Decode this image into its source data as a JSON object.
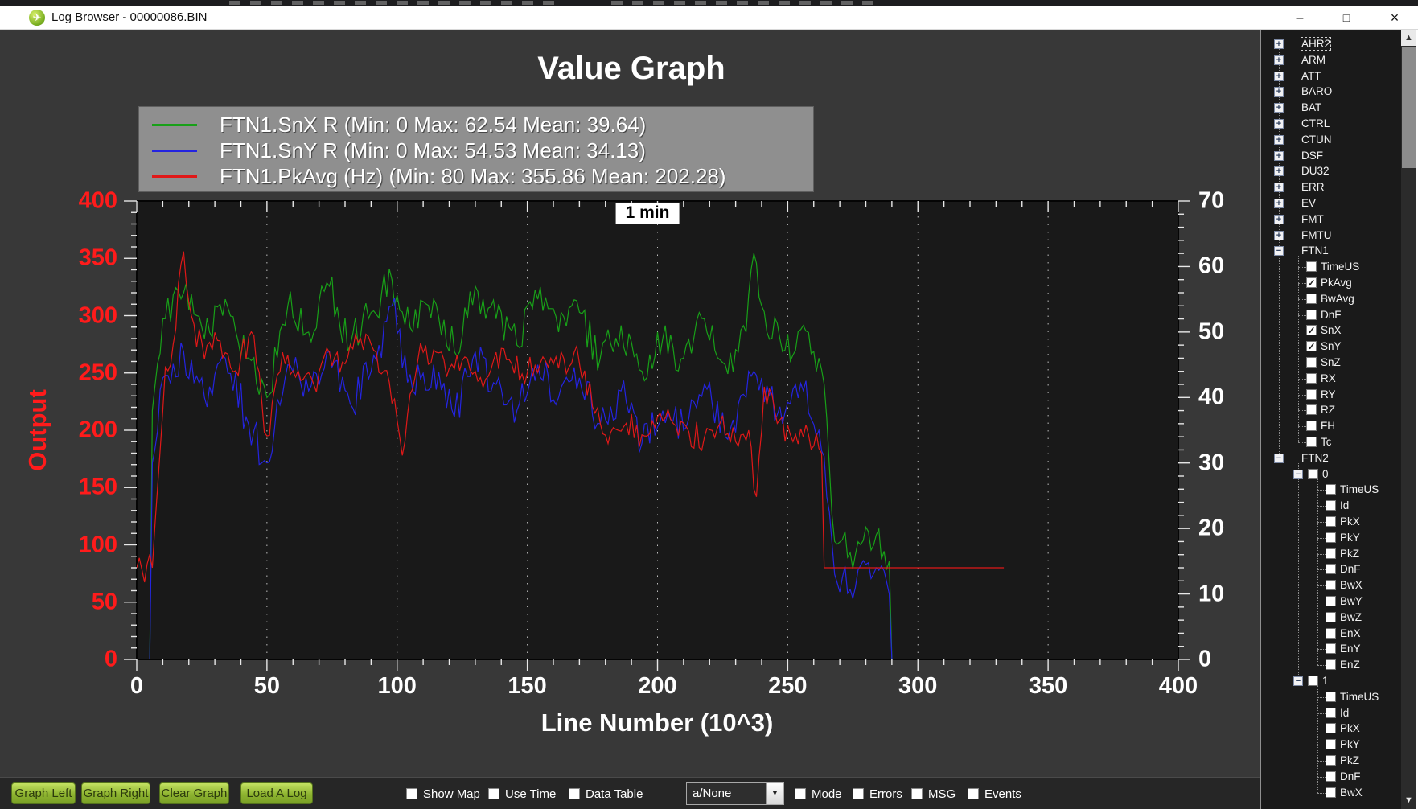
{
  "window": {
    "title": "Log Browser - 00000086.BIN",
    "controls": [
      "minimize",
      "maximize",
      "close"
    ],
    "icon": "plane-logo-icon"
  },
  "chart_data": {
    "type": "line",
    "title": "Value Graph",
    "xlabel": "Line Number (10^3)",
    "ylabel_left": "Output",
    "annotation": "1 min",
    "grid": {
      "vertical_dotted": true,
      "horizontal": false
    },
    "x_axis": {
      "min": 0,
      "max": 400,
      "major_step": 50,
      "minor_step": 10
    },
    "y_left": {
      "min": 0,
      "max": 400,
      "major_step": 50,
      "minor_step": 10,
      "color": "#ff1b1b"
    },
    "y_right": {
      "min": 0,
      "max": 70,
      "major_step": 10,
      "minor_step": 2,
      "color": "#ffffff"
    },
    "legend": {
      "position": "top-left",
      "entries": [
        {
          "label": "FTN1.SnX R (Min: 0 Max: 62.54 Mean: 39.64)",
          "color": "#18a018"
        },
        {
          "label": "FTN1.SnY R (Min: 0 Max: 54.53 Mean: 34.13)",
          "color": "#2424e0"
        },
        {
          "label": "FTN1.PkAvg (Hz) (Min: 80 Max: 355.86 Mean: 202.28)",
          "color": "#e01818"
        }
      ]
    },
    "series": [
      {
        "name": "FTN1.SnX R",
        "axis": "right",
        "color": "#18a018",
        "stats": {
          "min": 0,
          "max": 62.54,
          "mean": 39.64
        },
        "segments": [
          {
            "jitter": 3,
            "x": [
              5,
              6,
              10,
              18,
              26,
              34,
              42,
              50,
              58,
              66,
              74,
              82,
              90,
              98,
              106,
              114,
              122,
              130,
              138,
              146,
              154,
              162,
              170,
              178,
              186,
              194,
              202,
              210,
              218,
              226,
              234,
              237,
              240,
              248,
              256,
              262,
              264,
              268,
              276,
              284,
              289,
              290
            ],
            "y": [
              0,
              38,
              52,
              56,
              49,
              55,
              46,
              40,
              54,
              50,
              57,
              48,
              53,
              58,
              50,
              55,
              47,
              57,
              52,
              48,
              55,
              50,
              53,
              46,
              51,
              44,
              49,
              46,
              52,
              45,
              50,
              62,
              54,
              47,
              51,
              46,
              42,
              18,
              16,
              19,
              15,
              0
            ]
          }
        ]
      },
      {
        "name": "FTN1.SnY R",
        "axis": "right",
        "color": "#2424e0",
        "stats": {
          "min": 0,
          "max": 54.53,
          "mean": 34.13
        },
        "segments": [
          {
            "jitter": 3,
            "x": [
              5,
              6,
              10,
              18,
              26,
              34,
              42,
              50,
              58,
              66,
              74,
              82,
              90,
              98,
              106,
              114,
              122,
              130,
              138,
              146,
              154,
              162,
              170,
              178,
              186,
              194,
              202,
              210,
              218,
              226,
              234,
              237,
              240,
              248,
              256,
              262,
              264,
              268,
              276,
              284,
              289,
              290
            ],
            "y": [
              0,
              30,
              43,
              47,
              40,
              46,
              37,
              30,
              45,
              41,
              47,
              39,
              44,
              54,
              41,
              45,
              37,
              47,
              42,
              38,
              45,
              40,
              43,
              36,
              41,
              33,
              38,
              35,
              42,
              34,
              40,
              44,
              43,
              36,
              41,
              35,
              31,
              13,
              11,
              14,
              10,
              0
            ]
          },
          {
            "jitter": 0,
            "x": [
              290,
              331
            ],
            "y": [
              0,
              0
            ]
          }
        ]
      },
      {
        "name": "FTN1.PkAvg (Hz)",
        "axis": "left",
        "color": "#e01818",
        "stats": {
          "min": 80,
          "max": 355.86,
          "mean": 202.28
        },
        "segments": [
          {
            "jitter": 13,
            "x": [
              0,
              6,
              8,
              11,
              14,
              18,
              21,
              26,
              32,
              38,
              44,
              50,
              56,
              62,
              68,
              74,
              80,
              86,
              92,
              97,
              102,
              108,
              114,
              120,
              126,
              132,
              138,
              144,
              150,
              156,
              162,
              168,
              172,
              176,
              182,
              188,
              194,
              200,
              206,
              212,
              218,
              224,
              230,
              235,
              238,
              241,
              246,
              252,
              258,
              262,
              263
            ],
            "y": [
              80,
              80,
              150,
              255,
              275,
              356,
              300,
              262,
              278,
              252,
              286,
              195,
              268,
              252,
              240,
              268,
              258,
              280,
              268,
              242,
              178,
              262,
              270,
              254,
              264,
              246,
              268,
              258,
              250,
              264,
              254,
              268,
              252,
              215,
              198,
              206,
              196,
              212,
              206,
              199,
              194,
              206,
              190,
              200,
              142,
              238,
              206,
              190,
              196,
              184,
              180
            ]
          },
          {
            "jitter": 0,
            "x": [
              263,
              264,
              333
            ],
            "y": [
              180,
              80,
              80
            ]
          }
        ]
      }
    ]
  },
  "tree": {
    "nodes": [
      {
        "label": "AHR2",
        "state": "collapsed",
        "selected": true
      },
      {
        "label": "ARM",
        "state": "collapsed"
      },
      {
        "label": "ATT",
        "state": "collapsed"
      },
      {
        "label": "BARO",
        "state": "collapsed"
      },
      {
        "label": "BAT",
        "state": "collapsed"
      },
      {
        "label": "CTRL",
        "state": "collapsed"
      },
      {
        "label": "CTUN",
        "state": "collapsed"
      },
      {
        "label": "DSF",
        "state": "collapsed"
      },
      {
        "label": "DU32",
        "state": "collapsed"
      },
      {
        "label": "ERR",
        "state": "collapsed"
      },
      {
        "label": "EV",
        "state": "collapsed"
      },
      {
        "label": "FMT",
        "state": "collapsed"
      },
      {
        "label": "FMTU",
        "state": "collapsed"
      },
      {
        "label": "FTN1",
        "state": "expanded",
        "children": [
          {
            "label": "TimeUS",
            "checked": false
          },
          {
            "label": "PkAvg",
            "checked": true
          },
          {
            "label": "BwAvg",
            "checked": false
          },
          {
            "label": "DnF",
            "checked": false
          },
          {
            "label": "SnX",
            "checked": true
          },
          {
            "label": "SnY",
            "checked": true
          },
          {
            "label": "SnZ",
            "checked": false
          },
          {
            "label": "RX",
            "checked": false
          },
          {
            "label": "RY",
            "checked": false
          },
          {
            "label": "RZ",
            "checked": false
          },
          {
            "label": "FH",
            "checked": false
          },
          {
            "label": "Tc",
            "checked": false
          }
        ]
      },
      {
        "label": "FTN2",
        "state": "expanded",
        "children": [
          {
            "label": "0",
            "state": "expanded",
            "checked": false,
            "children": [
              {
                "label": "TimeUS",
                "checked": false
              },
              {
                "label": "Id",
                "checked": false
              },
              {
                "label": "PkX",
                "checked": false
              },
              {
                "label": "PkY",
                "checked": false
              },
              {
                "label": "PkZ",
                "checked": false
              },
              {
                "label": "DnF",
                "checked": false
              },
              {
                "label": "BwX",
                "checked": false
              },
              {
                "label": "BwY",
                "checked": false
              },
              {
                "label": "BwZ",
                "checked": false
              },
              {
                "label": "EnX",
                "checked": false
              },
              {
                "label": "EnY",
                "checked": false
              },
              {
                "label": "EnZ",
                "checked": false
              }
            ]
          },
          {
            "label": "1",
            "state": "expanded",
            "checked": false,
            "children": [
              {
                "label": "TimeUS",
                "checked": false
              },
              {
                "label": "Id",
                "checked": false
              },
              {
                "label": "PkX",
                "checked": false
              },
              {
                "label": "PkY",
                "checked": false
              },
              {
                "label": "PkZ",
                "checked": false
              },
              {
                "label": "DnF",
                "checked": false
              },
              {
                "label": "BwX",
                "checked": false
              }
            ]
          }
        ]
      }
    ]
  },
  "toolbar": {
    "buttons": [
      "Graph Left",
      "Graph Right",
      "Clear Graph",
      "Load A Log"
    ],
    "checkboxes_left": [
      {
        "label": "Show Map",
        "checked": false
      },
      {
        "label": "Use Time",
        "checked": false
      },
      {
        "label": "Data Table",
        "checked": false
      }
    ],
    "dropdown": {
      "value": "a/None"
    },
    "checkboxes_right": [
      {
        "label": "Mode",
        "checked": false
      },
      {
        "label": "Errors",
        "checked": false
      },
      {
        "label": "MSG",
        "checked": false
      },
      {
        "label": "Events",
        "checked": false
      }
    ]
  }
}
